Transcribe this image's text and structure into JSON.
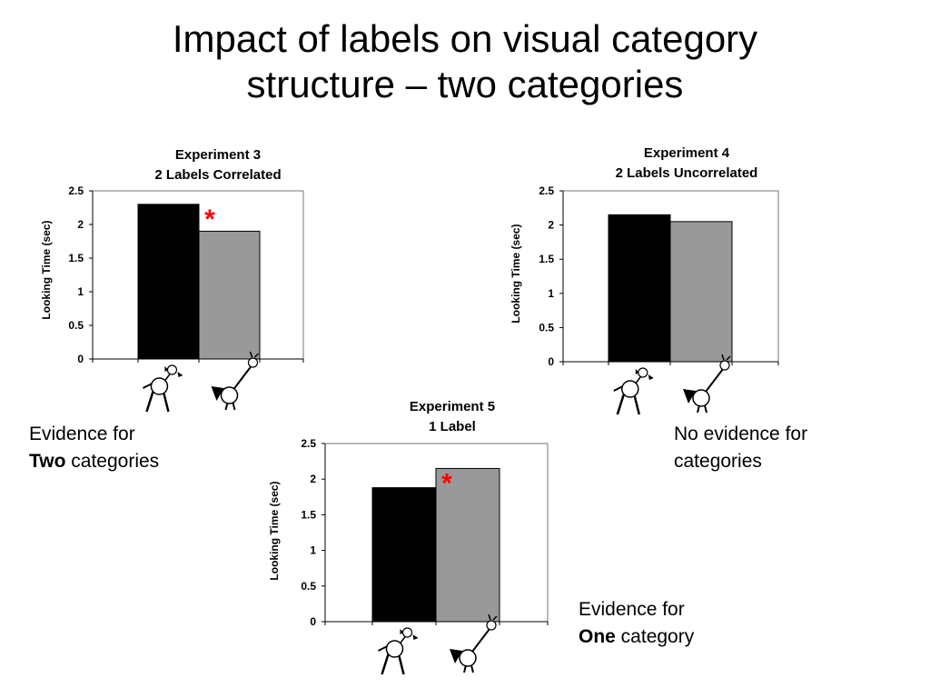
{
  "slide": {
    "title_line1": "Impact of labels on visual category",
    "title_line2": "structure – two categories"
  },
  "chart_data": [
    {
      "type": "bar",
      "title_line1": "Experiment 3",
      "title_line2": "2 Labels Correlated",
      "ylabel": "Looking Time (sec)",
      "ylim": [
        0,
        2.5
      ],
      "yticks": [
        "0",
        "0.5",
        "1",
        "1.5",
        "2",
        "2.5"
      ],
      "categories": [
        "creature-1",
        "creature-2"
      ],
      "values": [
        2.3,
        1.9
      ],
      "colors": [
        "#000000",
        "#999999"
      ],
      "significance": "*",
      "significance_color": "#ff0000"
    },
    {
      "type": "bar",
      "title_line1": "Experiment 4",
      "title_line2": "2 Labels Uncorrelated",
      "ylabel": "Looking Time (sec)",
      "ylim": [
        0,
        2.5
      ],
      "yticks": [
        "0",
        "0.5",
        "1",
        "1.5",
        "2",
        "2.5"
      ],
      "categories": [
        "creature-1",
        "creature-2"
      ],
      "values": [
        2.15,
        2.05
      ],
      "colors": [
        "#000000",
        "#999999"
      ],
      "significance": "",
      "significance_color": "#ff0000"
    },
    {
      "type": "bar",
      "title_line1": "Experiment 5",
      "title_line2": "1 Label",
      "ylabel": "Looking Time (sec)",
      "ylim": [
        0,
        2.5
      ],
      "yticks": [
        "0",
        "0.5",
        "1",
        "1.5",
        "2",
        "2.5"
      ],
      "categories": [
        "creature-1",
        "creature-2"
      ],
      "values": [
        1.88,
        2.15
      ],
      "colors": [
        "#000000",
        "#999999"
      ],
      "significance": "*",
      "significance_color": "#ff0000"
    }
  ],
  "notes": {
    "exp3_line1": "Evidence for",
    "exp3_bold": "Two",
    "exp3_rest": " categories",
    "exp4_line1": "No evidence for",
    "exp4_line2": "categories",
    "exp5_line1": "Evidence for",
    "exp5_bold": "One",
    "exp5_rest": " category"
  }
}
